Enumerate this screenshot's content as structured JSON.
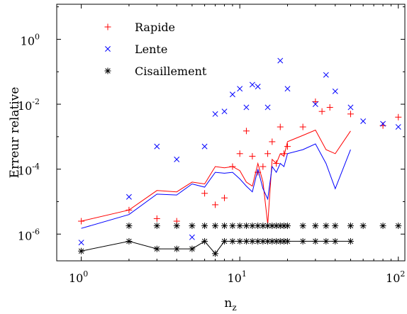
{
  "chart_data": {
    "type": "scatter",
    "title": "",
    "xlabel": "n",
    "xlabel_sub": "z",
    "ylabel": "Erreur relative",
    "xscale": "log",
    "yscale": "log",
    "xlim": [
      0.7,
      110
    ],
    "ylim": [
      1.5e-07,
      12
    ],
    "x_ticks": [
      {
        "value": 1,
        "base": "10",
        "exp": "0"
      },
      {
        "value": 10,
        "base": "10",
        "exp": "1"
      },
      {
        "value": 100,
        "base": "10",
        "exp": "2"
      }
    ],
    "y_ticks": [
      {
        "value": 1e-06,
        "base": "10",
        "exp": "-6"
      },
      {
        "value": 0.0001,
        "base": "10",
        "exp": "-4"
      },
      {
        "value": 0.01,
        "base": "10",
        "exp": "-2"
      },
      {
        "value": 1,
        "base": "10",
        "exp": "0"
      }
    ],
    "grid": false,
    "legend_position": "top-left",
    "series": [
      {
        "name": "Rapide",
        "color": "#ff0000",
        "marker": "plus",
        "points": [
          [
            1,
            2.5e-06
          ],
          [
            2,
            5.5e-06
          ],
          [
            3,
            3e-06
          ],
          [
            4,
            2.5e-06
          ],
          [
            6,
            1.8e-05
          ],
          [
            7,
            8e-06
          ],
          [
            8,
            1.3e-05
          ],
          [
            9,
            0.00012
          ],
          [
            10,
            0.0003
          ],
          [
            11,
            0.0015
          ],
          [
            12,
            0.00025
          ],
          [
            13,
            8e-05
          ],
          [
            14,
            0.00012
          ],
          [
            15,
            0.0003
          ],
          [
            16,
            0.0007
          ],
          [
            17,
            0.00015
          ],
          [
            18,
            0.002
          ],
          [
            19,
            0.0003
          ],
          [
            20,
            0.0005
          ],
          [
            25,
            0.002
          ],
          [
            30,
            0.012
          ],
          [
            33,
            0.006
          ],
          [
            37,
            0.008
          ],
          [
            50,
            0.005
          ],
          [
            80,
            0.0022
          ],
          [
            100,
            0.004
          ]
        ],
        "line": [
          [
            1,
            2.5e-06
          ],
          [
            2,
            5.5e-06
          ],
          [
            3,
            2.2e-05
          ],
          [
            4,
            2e-05
          ],
          [
            5,
            4e-05
          ],
          [
            6,
            3.5e-05
          ],
          [
            7,
            0.00012
          ],
          [
            8,
            0.00011
          ],
          [
            9,
            0.00012
          ],
          [
            10,
            9e-05
          ],
          [
            11,
            4e-05
          ],
          [
            12,
            3e-05
          ],
          [
            13,
            0.00015
          ],
          [
            14,
            4e-05
          ],
          [
            15,
            2e-06
          ],
          [
            16,
            0.0002
          ],
          [
            17,
            0.00015
          ],
          [
            18,
            0.0003
          ],
          [
            19,
            0.00025
          ],
          [
            20,
            0.0007
          ],
          [
            25,
            0.0011
          ],
          [
            30,
            0.0016
          ],
          [
            35,
            0.0004
          ],
          [
            40,
            0.0003
          ],
          [
            50,
            0.0015
          ]
        ]
      },
      {
        "name": "Lente",
        "color": "#0000ff",
        "marker": "cross",
        "points": [
          [
            1,
            5.5e-07
          ],
          [
            2,
            1.4e-05
          ],
          [
            3,
            0.0005
          ],
          [
            4,
            0.0002
          ],
          [
            5,
            8e-07
          ],
          [
            6,
            0.0005
          ],
          [
            7,
            0.005
          ],
          [
            8,
            0.006
          ],
          [
            9,
            0.02
          ],
          [
            10,
            0.03
          ],
          [
            11,
            0.008
          ],
          [
            12,
            0.04
          ],
          [
            13,
            0.035
          ],
          [
            15,
            0.008
          ],
          [
            18,
            0.22
          ],
          [
            20,
            0.03
          ],
          [
            30,
            0.01
          ],
          [
            35,
            0.08
          ],
          [
            40,
            0.025
          ],
          [
            50,
            0.008
          ],
          [
            60,
            0.003
          ],
          [
            80,
            0.0025
          ],
          [
            100,
            0.002
          ]
        ],
        "line": [
          [
            1,
            1.5e-06
          ],
          [
            2,
            4e-06
          ],
          [
            3,
            1.7e-05
          ],
          [
            4,
            1.6e-05
          ],
          [
            5,
            3.5e-05
          ],
          [
            6,
            2.8e-05
          ],
          [
            7,
            8e-05
          ],
          [
            8,
            7.5e-05
          ],
          [
            9,
            8e-05
          ],
          [
            10,
            5e-05
          ],
          [
            11,
            3e-05
          ],
          [
            12,
            2e-05
          ],
          [
            13,
            0.0001
          ],
          [
            14,
            2.5e-05
          ],
          [
            15,
            1.2e-05
          ],
          [
            16,
            0.00012
          ],
          [
            17,
            8e-05
          ],
          [
            18,
            0.00015
          ],
          [
            19,
            0.00012
          ],
          [
            20,
            0.0003
          ],
          [
            25,
            0.0004
          ],
          [
            30,
            0.0006
          ],
          [
            35,
            0.00015
          ],
          [
            40,
            2.5e-05
          ],
          [
            50,
            0.0004
          ]
        ]
      },
      {
        "name": "Cisaillement",
        "color": "#000000",
        "marker": "asterisk",
        "points": [
          [
            1,
            3e-07
          ],
          [
            2,
            6e-07
          ],
          [
            3,
            3.5e-07
          ],
          [
            4,
            3.5e-07
          ],
          [
            5,
            3.5e-07
          ],
          [
            6,
            6e-07
          ],
          [
            7,
            2.5e-07
          ],
          [
            8,
            6e-07
          ],
          [
            9,
            6e-07
          ],
          [
            10,
            6e-07
          ],
          [
            11,
            6e-07
          ],
          [
            12,
            6e-07
          ],
          [
            13,
            6e-07
          ],
          [
            14,
            6e-07
          ],
          [
            15,
            6e-07
          ],
          [
            16,
            6e-07
          ],
          [
            17,
            6e-07
          ],
          [
            18,
            6e-07
          ],
          [
            19,
            6e-07
          ],
          [
            20,
            6e-07
          ],
          [
            25,
            6e-07
          ],
          [
            30,
            6e-07
          ],
          [
            35,
            6e-07
          ],
          [
            40,
            6e-07
          ],
          [
            50,
            6e-07
          ],
          [
            2,
            1.8e-06
          ],
          [
            3,
            1.8e-06
          ],
          [
            4,
            1.8e-06
          ],
          [
            5,
            1.8e-06
          ],
          [
            6,
            1.8e-06
          ],
          [
            7,
            1.8e-06
          ],
          [
            8,
            1.8e-06
          ],
          [
            9,
            1.8e-06
          ],
          [
            10,
            1.8e-06
          ],
          [
            11,
            1.8e-06
          ],
          [
            12,
            1.8e-06
          ],
          [
            13,
            1.8e-06
          ],
          [
            14,
            1.8e-06
          ],
          [
            15,
            1.8e-06
          ],
          [
            16,
            1.8e-06
          ],
          [
            17,
            1.8e-06
          ],
          [
            18,
            1.8e-06
          ],
          [
            19,
            1.8e-06
          ],
          [
            20,
            1.8e-06
          ],
          [
            25,
            1.8e-06
          ],
          [
            30,
            1.8e-06
          ],
          [
            35,
            1.8e-06
          ],
          [
            40,
            1.8e-06
          ],
          [
            50,
            1.8e-06
          ],
          [
            60,
            1.8e-06
          ],
          [
            80,
            1.8e-06
          ],
          [
            100,
            1.8e-06
          ]
        ],
        "line": [
          [
            1,
            3e-07
          ],
          [
            2,
            6e-07
          ],
          [
            3,
            3.5e-07
          ],
          [
            4,
            3.5e-07
          ],
          [
            5,
            3.5e-07
          ],
          [
            6,
            6e-07
          ],
          [
            7,
            2.5e-07
          ],
          [
            8,
            6e-07
          ],
          [
            9,
            6e-07
          ],
          [
            10,
            6e-07
          ],
          [
            20,
            6e-07
          ],
          [
            50,
            6e-07
          ]
        ]
      }
    ]
  }
}
